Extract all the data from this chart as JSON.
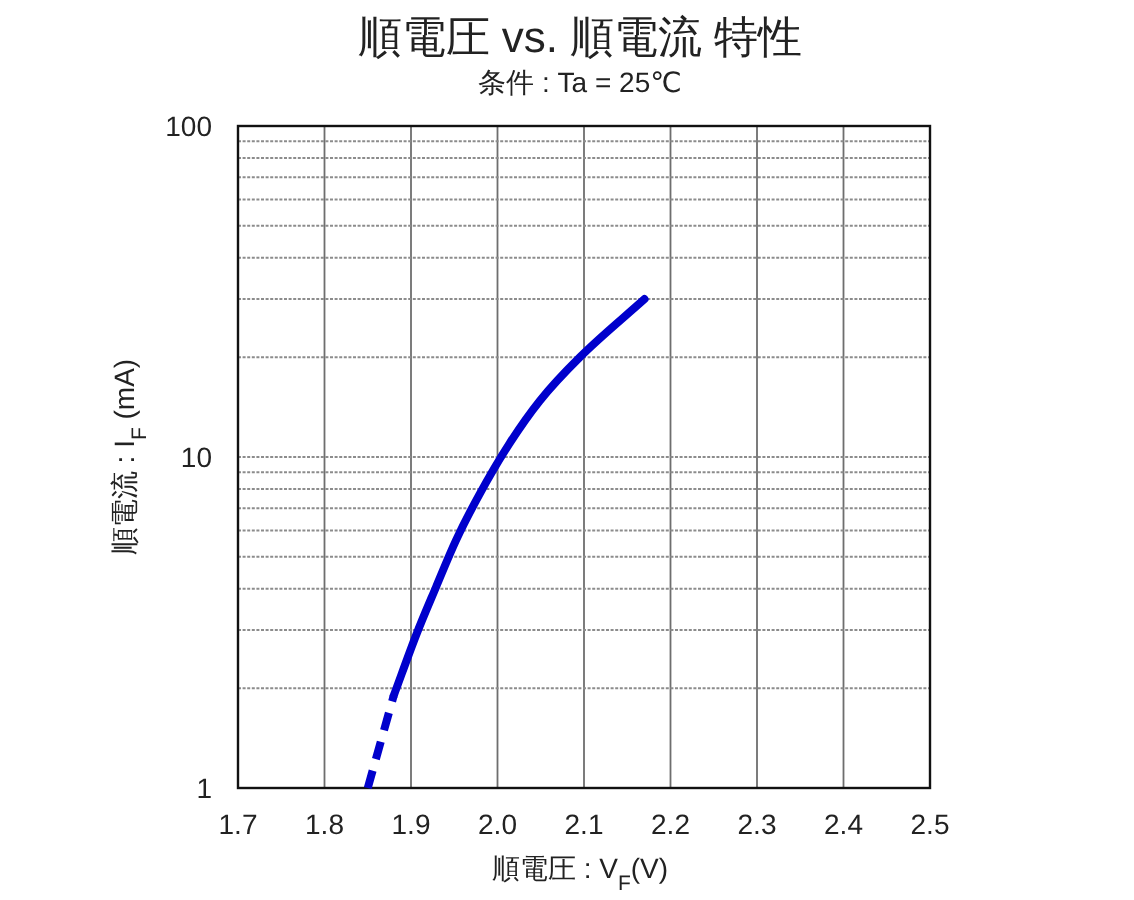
{
  "chart_data": {
    "type": "line",
    "title": "順電圧 vs. 順電流 特性",
    "subtitle": "条件 : Ta = 25℃",
    "xlabel": "順電圧 : V$_{F}$(V)",
    "ylabel": "順電流 : I$_{F}$ (mA)",
    "log": "y",
    "grid": true,
    "xlim": [
      1.7,
      2.5
    ],
    "xticks": [
      1.7,
      1.8,
      1.9,
      {
        "value": 2,
        "label": "2.0"
      },
      2.1,
      2.2,
      2.3,
      2.4,
      2.5
    ],
    "ylim": [
      1,
      100
    ],
    "yticks": [
      1,
      {
        "value": 2,
        "label": null
      },
      {
        "value": 3,
        "label": null
      },
      {
        "value": 4,
        "label": null
      },
      {
        "value": 5,
        "label": null
      },
      {
        "value": 6,
        "label": null
      },
      {
        "value": 7,
        "label": null
      },
      {
        "value": 8,
        "label": null
      },
      {
        "value": 9,
        "label": null
      },
      10,
      {
        "value": 20,
        "label": null
      },
      {
        "value": 30,
        "label": null
      },
      {
        "value": 40,
        "label": null
      },
      {
        "value": 50,
        "label": null
      },
      {
        "value": 60,
        "label": null
      },
      {
        "value": 70,
        "label": null
      },
      {
        "value": 80,
        "label": null
      },
      {
        "value": 90,
        "label": null
      },
      100
    ],
    "series": [
      {
        "color": "#0000cc",
        "line_style": "dashed",
        "x": [
          1.85,
          1.88
        ],
        "values": [
          1,
          1.9
        ]
      },
      {
        "color": "#0000cc",
        "line_style": "solid",
        "x": [
          1.88,
          1.906,
          1.929,
          1.952,
          1.979,
          2.014,
          2.049,
          2.095,
          2.17
        ],
        "values": [
          1.9,
          2.9,
          4.05,
          5.6,
          7.7,
          11,
          14.8,
          20,
          30
        ]
      }
    ]
  }
}
